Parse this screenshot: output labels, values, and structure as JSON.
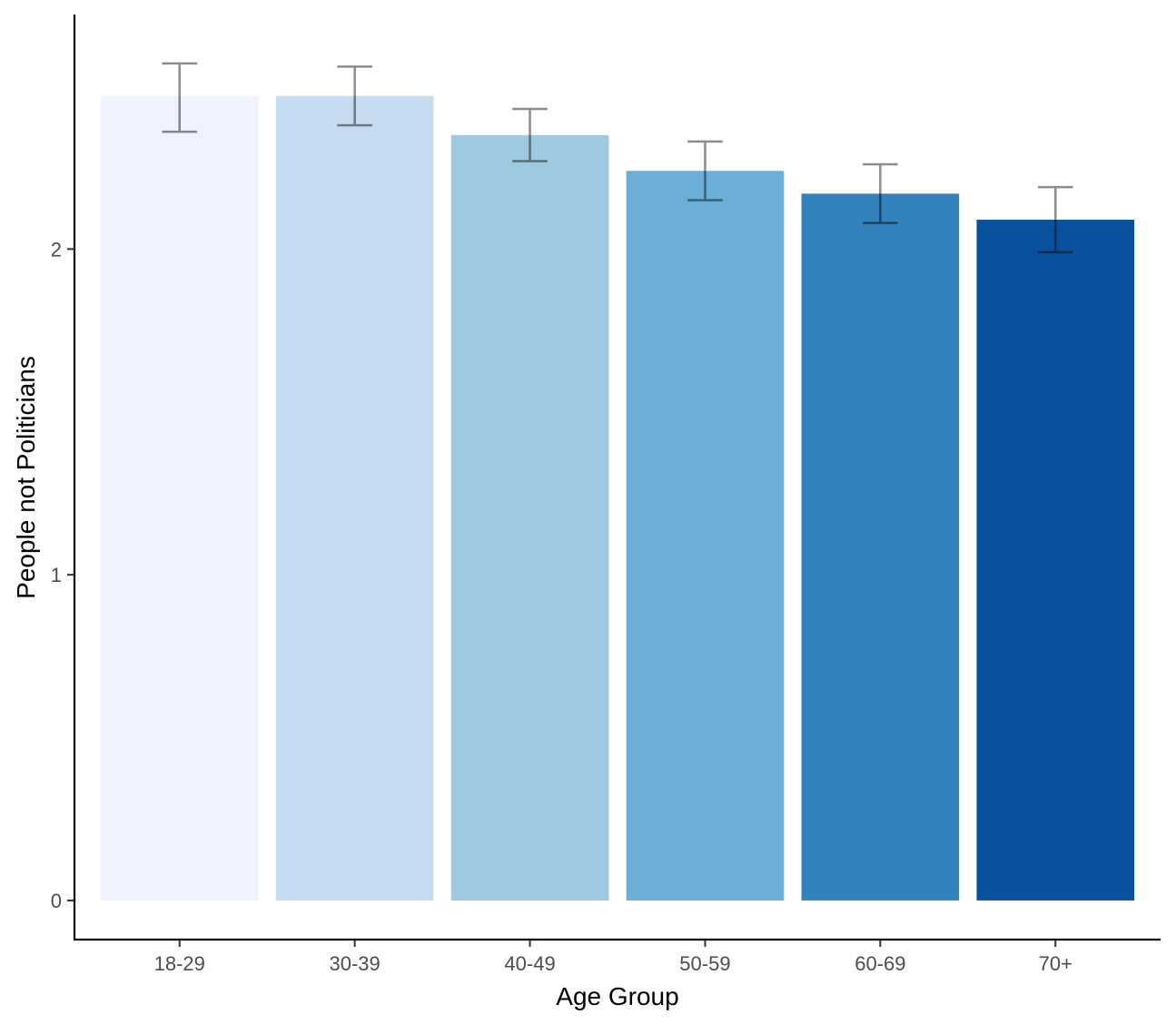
{
  "chart_data": {
    "type": "bar",
    "xlabel": "Age Group",
    "ylabel": "People not Politicians",
    "categories": [
      "18-29",
      "30-39",
      "40-49",
      "50-59",
      "60-69",
      "70+"
    ],
    "values": [
      2.47,
      2.47,
      2.35,
      2.24,
      2.17,
      2.09
    ],
    "error_low": [
      2.36,
      2.38,
      2.27,
      2.15,
      2.08,
      1.99
    ],
    "error_high": [
      2.57,
      2.56,
      2.43,
      2.33,
      2.26,
      2.19
    ],
    "bar_colors": [
      "#eff3ff",
      "#c6dbef",
      "#9ecae1",
      "#6baed6",
      "#3182bd",
      "#08519c"
    ],
    "yticks": [
      0,
      1,
      2
    ],
    "ylim": [
      -0.12,
      2.72
    ],
    "grid": false,
    "legend": "none"
  }
}
